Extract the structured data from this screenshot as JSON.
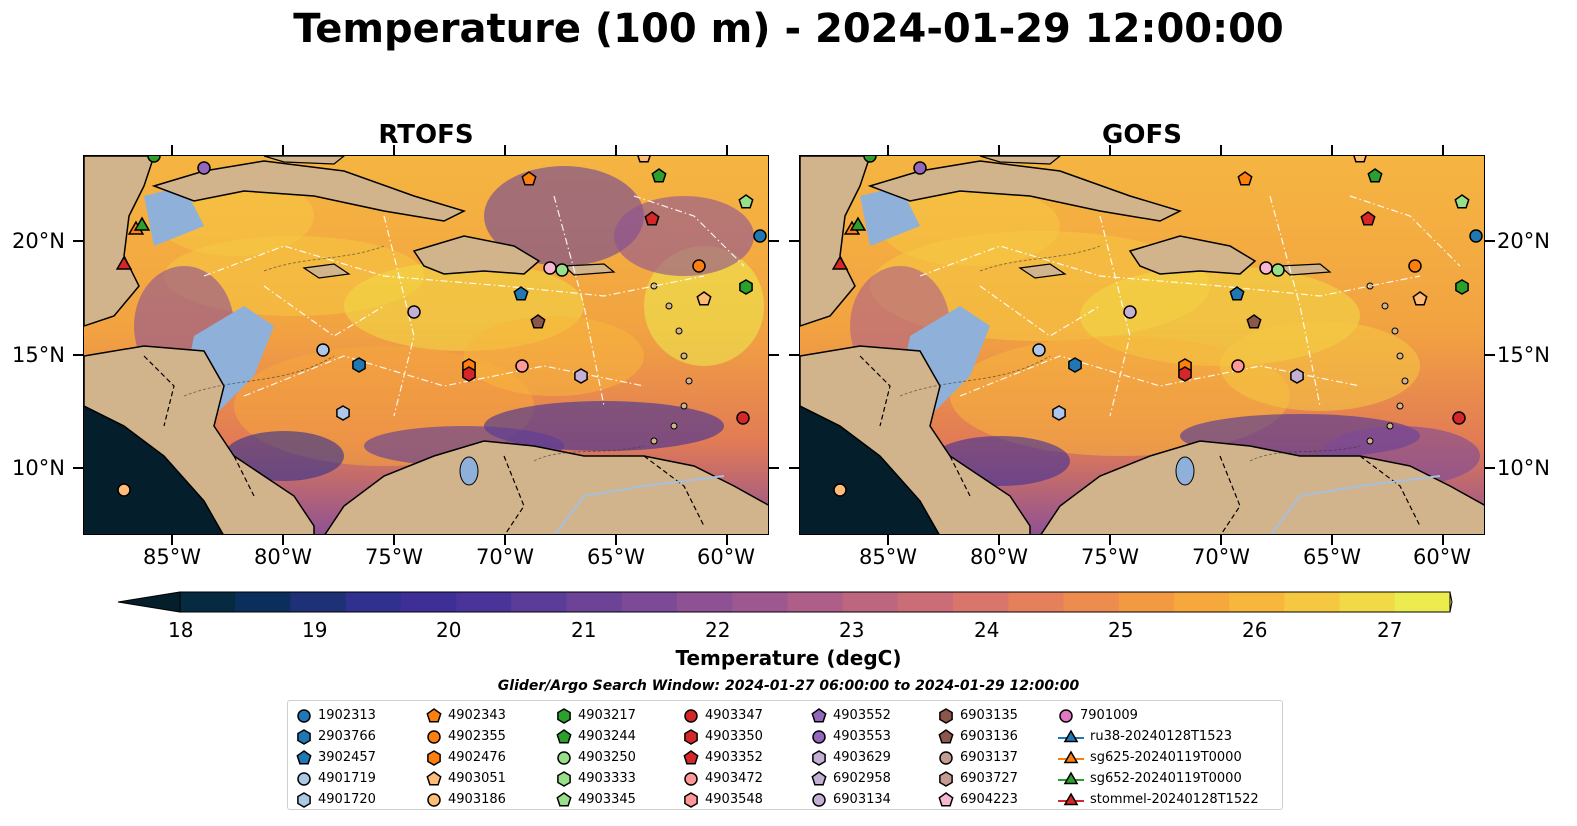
{
  "title": "Temperature (100 m) - 2024-01-29 12:00:00",
  "panels": [
    {
      "title": "RTOFS"
    },
    {
      "title": "GOFS"
    }
  ],
  "axes": {
    "lon_ticks": [
      "85°W",
      "80°W",
      "75°W",
      "70°W",
      "65°W",
      "60°W"
    ],
    "lat_ticks_left": [
      "20°N",
      "15°N",
      "10°N"
    ],
    "lat_ticks_right": [
      "20°N",
      "15°N",
      "10°N"
    ]
  },
  "colorbar": {
    "ticks": [
      "18",
      "19",
      "20",
      "21",
      "22",
      "23",
      "24",
      "25",
      "26",
      "27"
    ],
    "label": "Temperature (degC)",
    "colors": [
      "#041e2c",
      "#062a40",
      "#0b2f5d",
      "#1e3177",
      "#30308e",
      "#3d2f97",
      "#4a3399",
      "#5b3c99",
      "#6c4397",
      "#7c4a97",
      "#8e5194",
      "#9d5890",
      "#ad5f89",
      "#bd6680",
      "#cb6d76",
      "#d9756b",
      "#e57f5c",
      "#ee8b4e",
      "#f39942",
      "#f6a83c",
      "#f7b73d",
      "#f6c841",
      "#f1da45",
      "#ecec4f",
      "#ecf566"
    ]
  },
  "search_window": "Glider/Argo Search Window: 2024-01-27 06:00:00 to 2024-01-29 12:00:00",
  "legend": {
    "columns": [
      [
        {
          "label": "1902313",
          "shape": "circle",
          "color": "#1f77b4"
        },
        {
          "label": "2903766",
          "shape": "hexagon",
          "color": "#1f77b4"
        },
        {
          "label": "3902457",
          "shape": "pentagon",
          "color": "#1f77b4"
        },
        {
          "label": "4901719",
          "shape": "circle",
          "color": "#aec7e8"
        },
        {
          "label": "4901720",
          "shape": "hexagon",
          "color": "#aec7e8"
        }
      ],
      [
        {
          "label": "4902343",
          "shape": "pentagon",
          "color": "#ff7f0e"
        },
        {
          "label": "4902355",
          "shape": "circle",
          "color": "#ff7f0e"
        },
        {
          "label": "4902476",
          "shape": "hexagon",
          "color": "#ff7f0e"
        },
        {
          "label": "4903051",
          "shape": "pentagon",
          "color": "#ffbb78"
        },
        {
          "label": "4903186",
          "shape": "circle",
          "color": "#ffbb78"
        }
      ],
      [
        {
          "label": "4903217",
          "shape": "hexagon",
          "color": "#2ca02c"
        },
        {
          "label": "4903244",
          "shape": "pentagon",
          "color": "#2ca02c"
        },
        {
          "label": "4903250",
          "shape": "circle",
          "color": "#98df8a"
        },
        {
          "label": "4903333",
          "shape": "hexagon",
          "color": "#98df8a"
        },
        {
          "label": "4903345",
          "shape": "pentagon",
          "color": "#98df8a"
        }
      ],
      [
        {
          "label": "4903347",
          "shape": "circle",
          "color": "#d62728"
        },
        {
          "label": "4903350",
          "shape": "hexagon",
          "color": "#d62728"
        },
        {
          "label": "4903352",
          "shape": "pentagon",
          "color": "#d62728"
        },
        {
          "label": "4903472",
          "shape": "circle",
          "color": "#ff9896"
        },
        {
          "label": "4903548",
          "shape": "hexagon",
          "color": "#ff9896"
        }
      ],
      [
        {
          "label": "4903552",
          "shape": "pentagon",
          "color": "#9467bd"
        },
        {
          "label": "4903553",
          "shape": "circle",
          "color": "#9467bd"
        },
        {
          "label": "4903629",
          "shape": "hexagon",
          "color": "#c5b0d5"
        },
        {
          "label": "6902958",
          "shape": "pentagon",
          "color": "#c5b0d5"
        },
        {
          "label": "6903134",
          "shape": "circle",
          "color": "#c5b0d5"
        }
      ],
      [
        {
          "label": "6903135",
          "shape": "hexagon",
          "color": "#8c564b"
        },
        {
          "label": "6903136",
          "shape": "pentagon",
          "color": "#8c564b"
        },
        {
          "label": "6903137",
          "shape": "circle",
          "color": "#c49c94"
        },
        {
          "label": "6903727",
          "shape": "hexagon",
          "color": "#c49c94"
        },
        {
          "label": "6904223",
          "shape": "pentagon",
          "color": "#f7b6d2"
        }
      ],
      [
        {
          "label": "7901009",
          "shape": "circle",
          "color": "#e377c2"
        },
        {
          "label": "ru38-20240128T1523",
          "shape": "triangle-line",
          "color": "#1f77b4"
        },
        {
          "label": "sg625-20240119T0000",
          "shape": "triangle-line",
          "color": "#ff7f0e"
        },
        {
          "label": "sg652-20240119T0000",
          "shape": "triangle-line",
          "color": "#2ca02c"
        },
        {
          "label": "stommel-20240128T1522",
          "shape": "triangle-line",
          "color": "#d62728"
        }
      ]
    ]
  }
}
